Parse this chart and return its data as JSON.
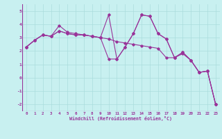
{
  "xlabel": "Windchill (Refroidissement éolien,°C)",
  "bg_color": "#c8f0f0",
  "line_color": "#993399",
  "grid_color": "#aadddd",
  "xlim": [
    -0.5,
    23.5
  ],
  "ylim": [
    -2.5,
    5.5
  ],
  "yticks": [
    -2,
    -1,
    0,
    1,
    2,
    3,
    4,
    5
  ],
  "xticks": [
    0,
    1,
    2,
    3,
    4,
    5,
    6,
    7,
    8,
    9,
    10,
    11,
    12,
    13,
    14,
    15,
    16,
    17,
    18,
    19,
    20,
    21,
    22,
    23
  ],
  "series1_x": [
    0,
    1,
    2,
    3,
    4,
    5,
    6,
    7,
    8,
    9,
    10,
    11,
    12,
    13,
    14,
    15,
    16,
    17,
    18,
    19,
    20,
    21,
    22,
    23
  ],
  "series1_y": [
    2.3,
    2.8,
    3.2,
    3.1,
    3.9,
    3.4,
    3.3,
    3.2,
    3.1,
    3.0,
    4.7,
    1.4,
    2.3,
    3.3,
    4.7,
    4.6,
    3.3,
    2.9,
    1.5,
    1.9,
    1.3,
    0.4,
    0.5,
    -2.0
  ],
  "series2_x": [
    0,
    1,
    2,
    3,
    4,
    5,
    6,
    7,
    8,
    9,
    10,
    11,
    12,
    13,
    14,
    15,
    16,
    17,
    18,
    19,
    20,
    21,
    22,
    23
  ],
  "series2_y": [
    2.3,
    2.8,
    3.2,
    3.1,
    3.5,
    3.3,
    3.2,
    3.2,
    3.1,
    3.0,
    2.9,
    2.7,
    2.6,
    2.5,
    2.4,
    2.3,
    2.2,
    1.5,
    1.5,
    1.8,
    1.3,
    0.4,
    0.5,
    -2.0
  ],
  "series3_x": [
    0,
    1,
    2,
    3,
    4,
    5,
    6,
    7,
    8,
    9,
    10,
    11,
    12,
    13,
    14,
    15,
    16,
    17,
    18,
    19,
    20,
    21,
    22,
    23
  ],
  "series3_y": [
    2.3,
    2.8,
    3.2,
    3.1,
    3.5,
    3.3,
    3.2,
    3.2,
    3.1,
    3.0,
    1.4,
    1.4,
    2.3,
    3.3,
    4.7,
    4.6,
    3.3,
    2.9,
    1.5,
    1.9,
    1.3,
    0.4,
    0.5,
    -2.0
  ]
}
